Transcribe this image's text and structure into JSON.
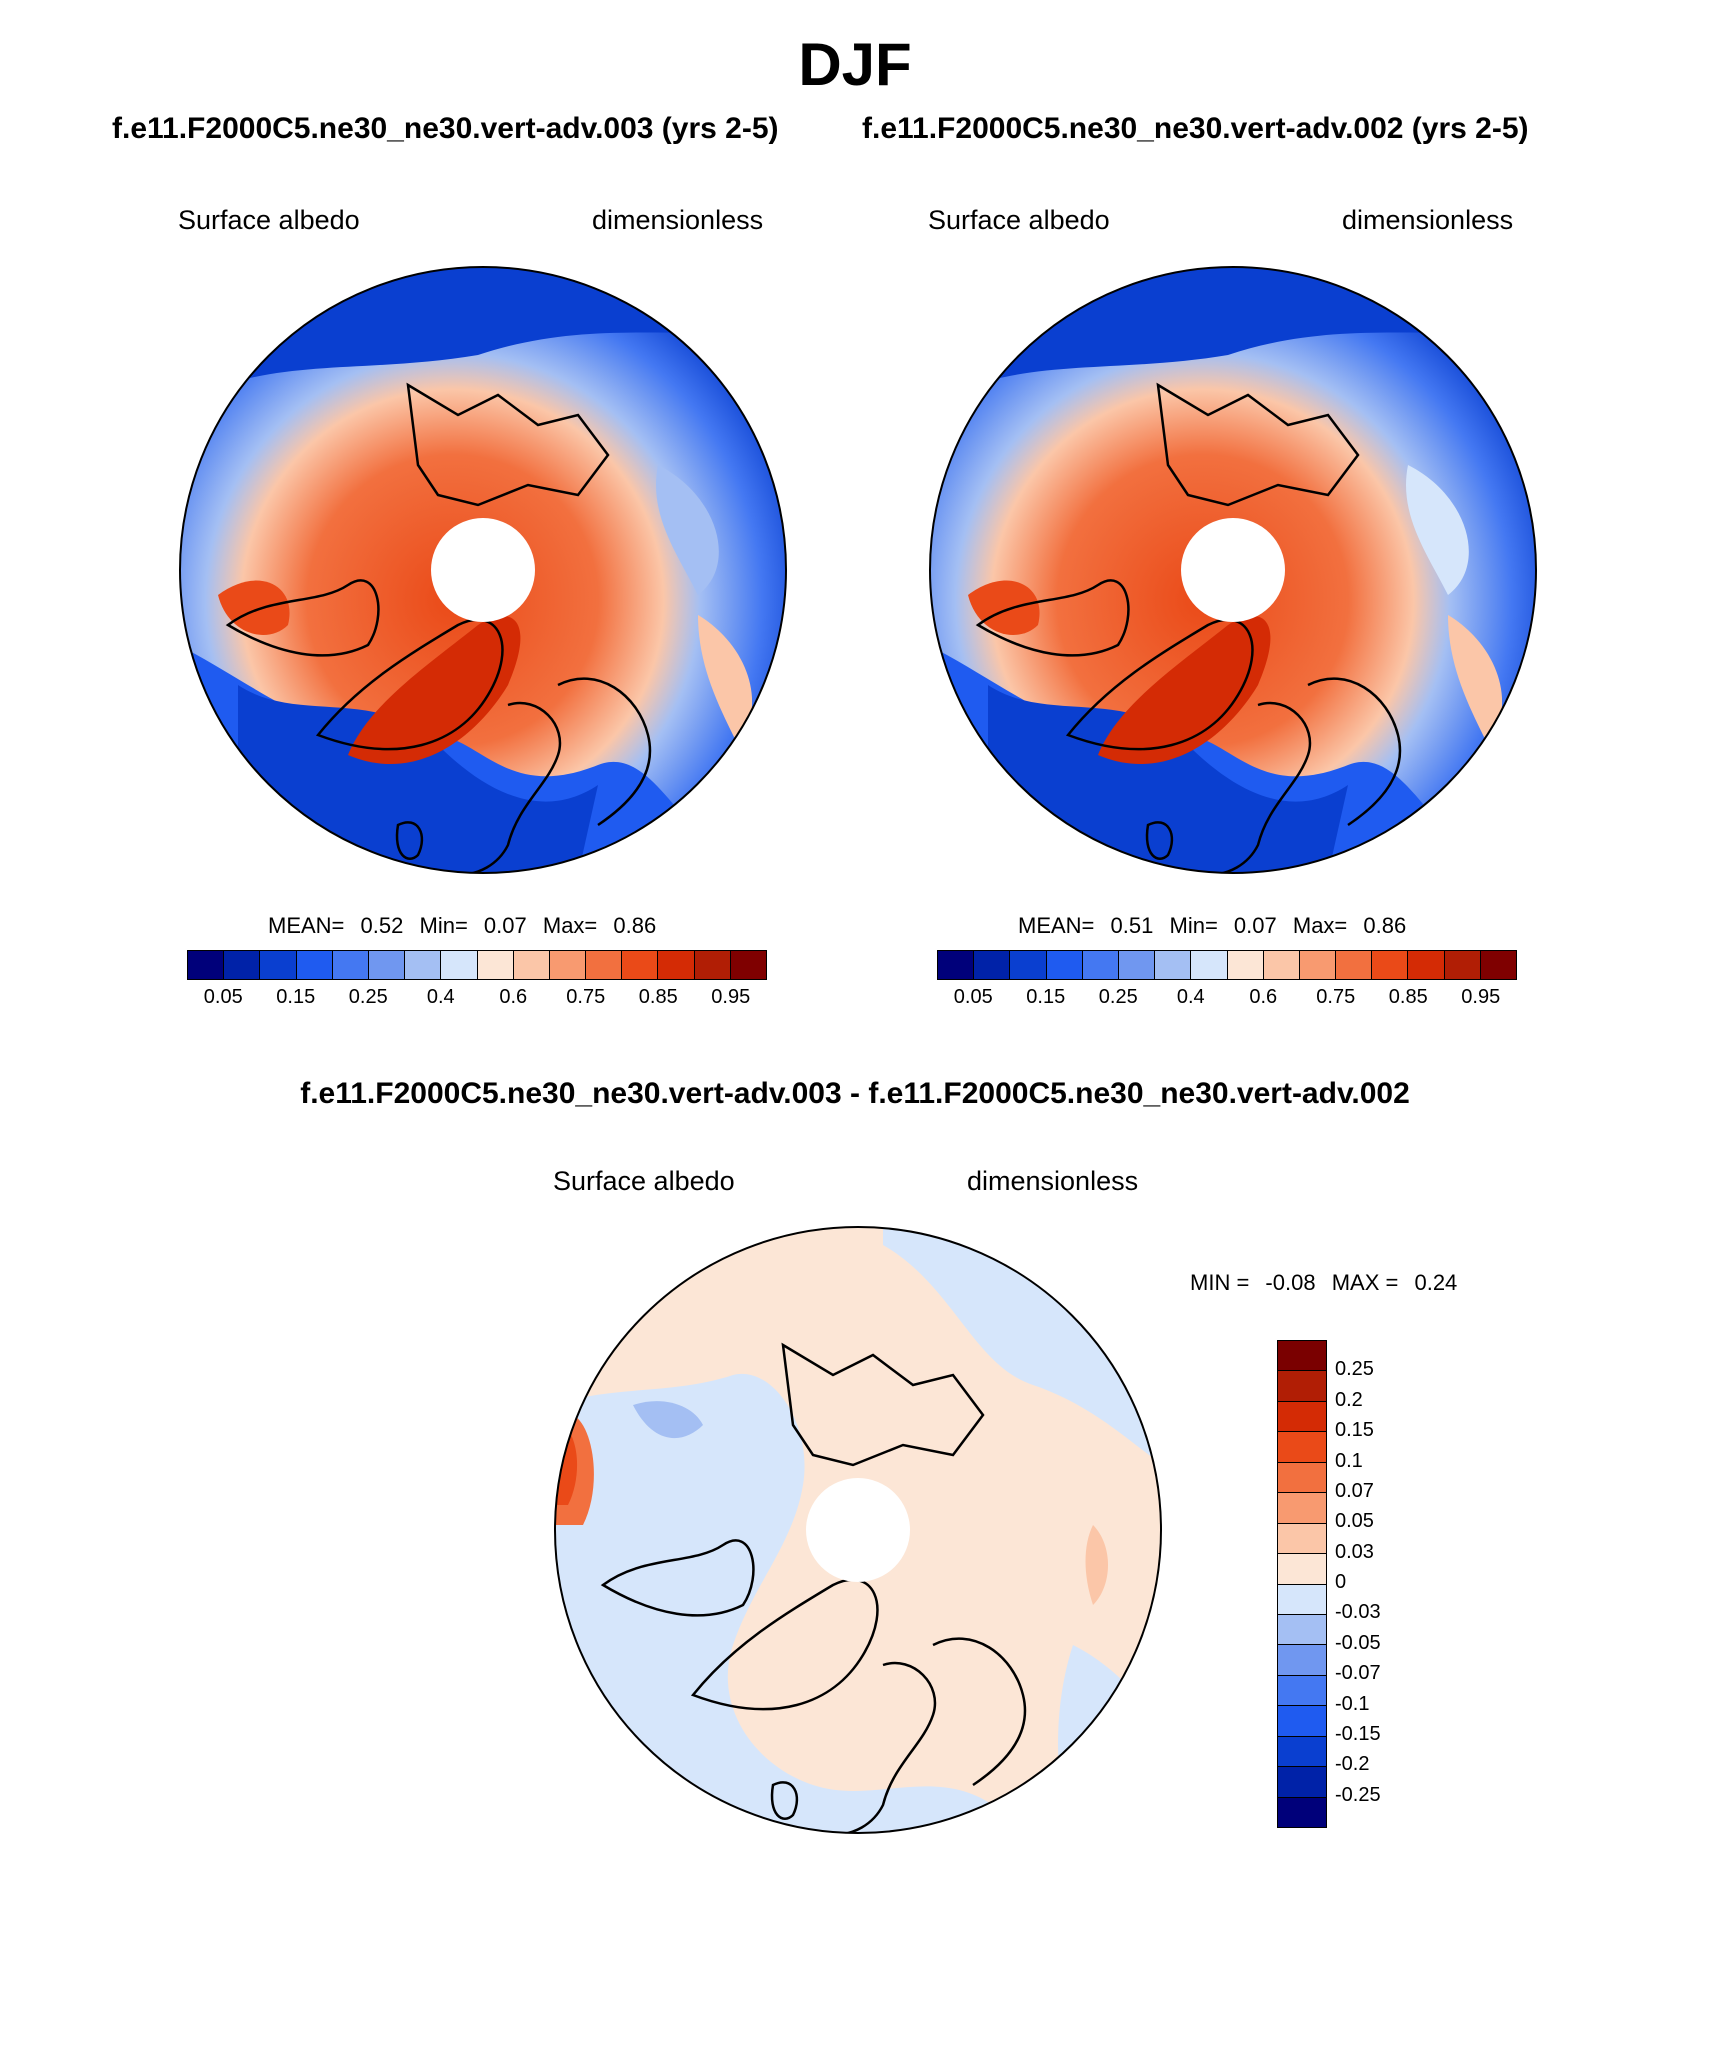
{
  "header": {
    "title": "DJF",
    "left_case": "f.e11.F2000C5.ne30_ne30.vert-adv.003 (yrs 2-5)",
    "right_case": "f.e11.F2000C5.ne30_ne30.vert-adv.002 (yrs 2-5)",
    "diff_case": "f.e11.F2000C5.ne30_ne30.vert-adv.003 - f.e11.F2000C5.ne30_ne30.vert-adv.002"
  },
  "panels": {
    "left": {
      "variable": "Surface albedo",
      "units": "dimensionless",
      "mean_label": "MEAN=",
      "mean_value": "0.52",
      "min_label": "Min=",
      "min_value": "0.07",
      "max_label": "Max=",
      "max_value": "0.86"
    },
    "right": {
      "variable": "Surface albedo",
      "units": "dimensionless",
      "mean_label": "MEAN=",
      "mean_value": "0.51",
      "min_label": "Min=",
      "min_value": "0.07",
      "max_label": "Max=",
      "max_value": "0.86"
    },
    "diff": {
      "variable": "Surface albedo",
      "units": "dimensionless",
      "min_label": "MIN =",
      "min_value": "-0.08",
      "max_label": "MAX =",
      "max_value": "0.24"
    }
  },
  "colorbar_main": {
    "colors": [
      "#00007a",
      "#0022a8",
      "#0a3fd0",
      "#1f5bf0",
      "#4478f2",
      "#7097f0",
      "#a4bff3",
      "#d6e6fb",
      "#fce6d6",
      "#fbc6a8",
      "#f89a70",
      "#f2703f",
      "#ea4a18",
      "#d42b05",
      "#b11e05",
      "#7f0000"
    ],
    "labels": [
      "0.05",
      "0.15",
      "0.25",
      "0.4",
      "0.6",
      "0.75",
      "0.85",
      "0.95"
    ]
  },
  "colorbar_diff": {
    "colors": [
      "#7a0000",
      "#b11e05",
      "#d42b05",
      "#ea4a18",
      "#f2703f",
      "#f89a70",
      "#fbc6a8",
      "#fce6d6",
      "#d6e6fb",
      "#a4bff3",
      "#7097f0",
      "#4478f2",
      "#1f5bf0",
      "#0a3fd0",
      "#0022a8",
      "#00007a"
    ],
    "labels": [
      "0.25",
      "0.2",
      "0.15",
      "0.1",
      "0.07",
      "0.05",
      "0.03",
      "0",
      "-0.03",
      "-0.05",
      "-0.07",
      "-0.1",
      "-0.15",
      "-0.2",
      "-0.25"
    ]
  }
}
